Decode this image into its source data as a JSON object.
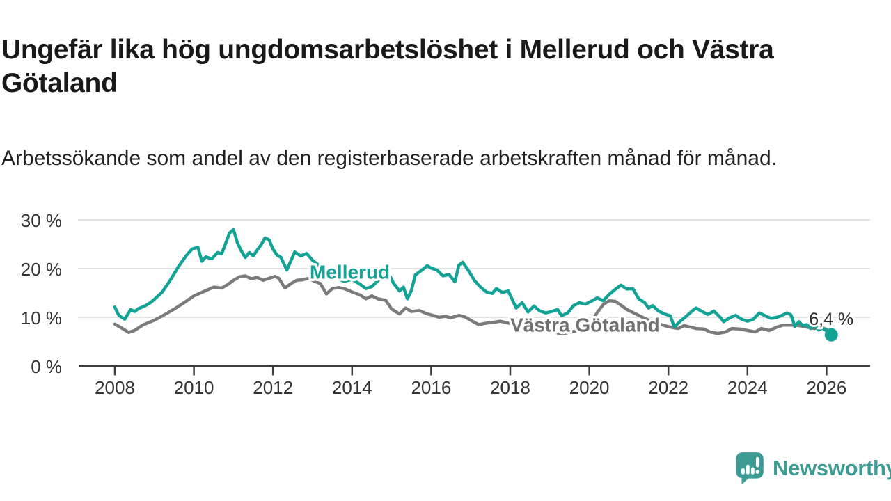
{
  "title": "Ungefär lika hög ungdomsarbetslöshet i Mellerud och Västra Götaland",
  "subtitle": "Arbetssökande som andel av den registerbaserade arbetskraften månad för månad.",
  "branding": {
    "logo_text": "Newsworthy",
    "logo_color": "#3d9b93"
  },
  "colors": {
    "mellerud_line": "#12a296",
    "vastra_gotaland_line": "#7b7b7b",
    "grid": "#d9d9d9",
    "axis": "#3c3c3c",
    "tick_text": "#333333",
    "title_text": "#191919",
    "annotation_text": "#2b2b2b"
  },
  "chart_data": {
    "type": "line",
    "title": "Ungefär lika hög ungdomsarbetslöshet i Mellerud och Västra Götaland",
    "subtitle": "Arbetssökande som andel av den registerbaserade arbetskraften månad för månad.",
    "x_axis": {
      "ticks": [
        2008,
        2010,
        2012,
        2014,
        2016,
        2018,
        2020,
        2022,
        2024,
        2026
      ]
    },
    "y_axis": {
      "ticks": [
        {
          "value": 0,
          "label": "0 %"
        },
        {
          "value": 10,
          "label": "10 %"
        },
        {
          "value": 20,
          "label": "20 %"
        },
        {
          "value": 30,
          "label": "30 %"
        }
      ],
      "range": [
        0,
        32
      ],
      "grid": true
    },
    "legend_position": "inline-labels",
    "annotation": {
      "label": "6,4 %",
      "x": 2026.12,
      "y": 6.4
    },
    "series_labels": [
      {
        "text": "Mellerud",
        "x": 2012.93,
        "y": 17.9,
        "color": "#12a296"
      },
      {
        "text": "Västra Götaland",
        "x": 2018.0,
        "y": 7.1,
        "color": "#717171"
      }
    ],
    "series": [
      {
        "name": "Västra Götaland",
        "color": "#7b7b7b",
        "points": [
          [
            2008.0,
            8.6
          ],
          [
            2008.15,
            7.9
          ],
          [
            2008.35,
            6.9
          ],
          [
            2008.5,
            7.3
          ],
          [
            2008.7,
            8.4
          ],
          [
            2008.85,
            8.9
          ],
          [
            2009.0,
            9.4
          ],
          [
            2009.25,
            10.5
          ],
          [
            2009.5,
            11.7
          ],
          [
            2009.75,
            13.0
          ],
          [
            2010.0,
            14.4
          ],
          [
            2010.25,
            15.3
          ],
          [
            2010.5,
            16.2
          ],
          [
            2010.7,
            16.0
          ],
          [
            2010.85,
            16.7
          ],
          [
            2011.0,
            17.6
          ],
          [
            2011.15,
            18.3
          ],
          [
            2011.3,
            18.5
          ],
          [
            2011.45,
            17.9
          ],
          [
            2011.6,
            18.2
          ],
          [
            2011.75,
            17.6
          ],
          [
            2011.9,
            18.0
          ],
          [
            2012.05,
            18.4
          ],
          [
            2012.15,
            18.0
          ],
          [
            2012.3,
            16.0
          ],
          [
            2012.45,
            16.9
          ],
          [
            2012.6,
            17.6
          ],
          [
            2012.75,
            17.7
          ],
          [
            2012.9,
            18.0
          ],
          [
            2013.05,
            17.4
          ],
          [
            2013.2,
            16.9
          ],
          [
            2013.35,
            14.8
          ],
          [
            2013.5,
            15.9
          ],
          [
            2013.65,
            16.1
          ],
          [
            2013.8,
            15.9
          ],
          [
            2014.0,
            15.2
          ],
          [
            2014.2,
            14.6
          ],
          [
            2014.35,
            13.8
          ],
          [
            2014.5,
            14.4
          ],
          [
            2014.65,
            13.8
          ],
          [
            2014.85,
            13.5
          ],
          [
            2015.0,
            11.7
          ],
          [
            2015.2,
            10.7
          ],
          [
            2015.35,
            11.9
          ],
          [
            2015.5,
            11.2
          ],
          [
            2015.7,
            11.4
          ],
          [
            2015.9,
            10.7
          ],
          [
            2016.05,
            10.4
          ],
          [
            2016.2,
            10.0
          ],
          [
            2016.35,
            10.2
          ],
          [
            2016.5,
            9.9
          ],
          [
            2016.7,
            10.4
          ],
          [
            2016.85,
            10.1
          ],
          [
            2017.0,
            9.4
          ],
          [
            2017.2,
            8.5
          ],
          [
            2017.4,
            8.8
          ],
          [
            2017.6,
            9.0
          ],
          [
            2017.75,
            9.2
          ],
          [
            2017.9,
            8.9
          ],
          [
            2018.1,
            8.6
          ],
          [
            2018.3,
            8.0
          ],
          [
            2018.5,
            7.8
          ],
          [
            2018.7,
            7.6
          ],
          [
            2018.9,
            7.4
          ],
          [
            2019.1,
            7.0
          ],
          [
            2019.3,
            6.6
          ],
          [
            2019.5,
            6.9
          ],
          [
            2019.7,
            7.3
          ],
          [
            2019.9,
            8.0
          ],
          [
            2020.05,
            9.0
          ],
          [
            2020.2,
            11.0
          ],
          [
            2020.35,
            12.6
          ],
          [
            2020.5,
            13.4
          ],
          [
            2020.65,
            13.3
          ],
          [
            2020.8,
            12.5
          ],
          [
            2020.95,
            11.6
          ],
          [
            2021.1,
            11.0
          ],
          [
            2021.3,
            10.2
          ],
          [
            2021.5,
            9.4
          ],
          [
            2021.7,
            8.8
          ],
          [
            2021.9,
            8.3
          ],
          [
            2022.1,
            7.9
          ],
          [
            2022.25,
            7.7
          ],
          [
            2022.4,
            8.3
          ],
          [
            2022.55,
            8.0
          ],
          [
            2022.7,
            7.7
          ],
          [
            2022.9,
            7.6
          ],
          [
            2023.05,
            7.0
          ],
          [
            2023.25,
            6.7
          ],
          [
            2023.45,
            7.0
          ],
          [
            2023.6,
            7.7
          ],
          [
            2023.8,
            7.6
          ],
          [
            2024.0,
            7.3
          ],
          [
            2024.2,
            7.0
          ],
          [
            2024.35,
            7.7
          ],
          [
            2024.55,
            7.3
          ],
          [
            2024.75,
            8.0
          ],
          [
            2024.9,
            8.4
          ],
          [
            2025.1,
            8.4
          ],
          [
            2025.3,
            8.3
          ],
          [
            2025.5,
            8.0
          ],
          [
            2025.7,
            7.7
          ],
          [
            2025.85,
            8.0
          ],
          [
            2026.0,
            7.5
          ]
        ]
      },
      {
        "name": "Mellerud",
        "color": "#12a296",
        "end_dot": true,
        "points": [
          [
            2008.0,
            12.1
          ],
          [
            2008.1,
            10.4
          ],
          [
            2008.25,
            9.6
          ],
          [
            2008.4,
            11.6
          ],
          [
            2008.5,
            11.2
          ],
          [
            2008.6,
            11.8
          ],
          [
            2008.75,
            12.3
          ],
          [
            2008.9,
            13.0
          ],
          [
            2009.0,
            13.7
          ],
          [
            2009.2,
            15.2
          ],
          [
            2009.4,
            17.6
          ],
          [
            2009.6,
            20.3
          ],
          [
            2009.8,
            22.6
          ],
          [
            2009.95,
            24.0
          ],
          [
            2010.1,
            24.4
          ],
          [
            2010.2,
            21.5
          ],
          [
            2010.3,
            22.4
          ],
          [
            2010.45,
            22.0
          ],
          [
            2010.6,
            23.3
          ],
          [
            2010.7,
            23.0
          ],
          [
            2010.8,
            25.1
          ],
          [
            2010.9,
            27.3
          ],
          [
            2011.0,
            28.0
          ],
          [
            2011.1,
            25.3
          ],
          [
            2011.2,
            23.6
          ],
          [
            2011.3,
            22.3
          ],
          [
            2011.4,
            23.3
          ],
          [
            2011.5,
            22.6
          ],
          [
            2011.6,
            23.8
          ],
          [
            2011.7,
            24.9
          ],
          [
            2011.8,
            26.3
          ],
          [
            2011.9,
            25.9
          ],
          [
            2012.0,
            24.0
          ],
          [
            2012.1,
            22.8
          ],
          [
            2012.2,
            22.3
          ],
          [
            2012.35,
            19.7
          ],
          [
            2012.55,
            23.4
          ],
          [
            2012.7,
            22.6
          ],
          [
            2012.85,
            23.1
          ],
          [
            2013.0,
            21.7
          ],
          [
            2013.2,
            20.4
          ],
          [
            2013.4,
            19.0
          ],
          [
            2013.6,
            18.0
          ],
          [
            2013.8,
            17.4
          ],
          [
            2014.0,
            17.8
          ],
          [
            2014.2,
            16.8
          ],
          [
            2014.35,
            15.9
          ],
          [
            2014.5,
            16.3
          ],
          [
            2014.7,
            17.9
          ],
          [
            2014.9,
            19.4
          ],
          [
            2015.05,
            17.0
          ],
          [
            2015.2,
            15.4
          ],
          [
            2015.3,
            16.2
          ],
          [
            2015.4,
            13.8
          ],
          [
            2015.5,
            15.5
          ],
          [
            2015.6,
            18.7
          ],
          [
            2015.8,
            19.9
          ],
          [
            2015.9,
            20.6
          ],
          [
            2016.0,
            20.1
          ],
          [
            2016.15,
            19.7
          ],
          [
            2016.3,
            18.5
          ],
          [
            2016.45,
            18.8
          ],
          [
            2016.6,
            17.3
          ],
          [
            2016.7,
            20.7
          ],
          [
            2016.8,
            21.3
          ],
          [
            2016.95,
            19.5
          ],
          [
            2017.1,
            17.5
          ],
          [
            2017.25,
            16.2
          ],
          [
            2017.4,
            15.2
          ],
          [
            2017.55,
            14.9
          ],
          [
            2017.65,
            15.9
          ],
          [
            2017.8,
            15.1
          ],
          [
            2017.95,
            15.4
          ],
          [
            2018.05,
            13.7
          ],
          [
            2018.15,
            11.9
          ],
          [
            2018.3,
            13.0
          ],
          [
            2018.45,
            11.1
          ],
          [
            2018.6,
            12.3
          ],
          [
            2018.75,
            11.3
          ],
          [
            2018.9,
            10.9
          ],
          [
            2019.05,
            11.2
          ],
          [
            2019.2,
            11.6
          ],
          [
            2019.3,
            10.3
          ],
          [
            2019.45,
            10.9
          ],
          [
            2019.6,
            12.4
          ],
          [
            2019.75,
            13.0
          ],
          [
            2019.9,
            12.7
          ],
          [
            2020.05,
            13.3
          ],
          [
            2020.2,
            14.0
          ],
          [
            2020.35,
            13.4
          ],
          [
            2020.5,
            14.7
          ],
          [
            2020.65,
            15.7
          ],
          [
            2020.8,
            16.6
          ],
          [
            2020.95,
            15.8
          ],
          [
            2021.1,
            15.9
          ],
          [
            2021.25,
            13.8
          ],
          [
            2021.4,
            13.0
          ],
          [
            2021.5,
            11.9
          ],
          [
            2021.6,
            12.4
          ],
          [
            2021.75,
            11.3
          ],
          [
            2021.9,
            10.7
          ],
          [
            2022.05,
            10.3
          ],
          [
            2022.15,
            8.0
          ],
          [
            2022.3,
            9.2
          ],
          [
            2022.45,
            10.2
          ],
          [
            2022.6,
            11.3
          ],
          [
            2022.7,
            11.9
          ],
          [
            2022.85,
            11.2
          ],
          [
            2023.0,
            10.6
          ],
          [
            2023.15,
            11.3
          ],
          [
            2023.3,
            10.1
          ],
          [
            2023.4,
            9.1
          ],
          [
            2023.55,
            9.9
          ],
          [
            2023.7,
            10.4
          ],
          [
            2023.85,
            9.6
          ],
          [
            2024.0,
            9.2
          ],
          [
            2024.15,
            9.6
          ],
          [
            2024.3,
            10.9
          ],
          [
            2024.45,
            10.3
          ],
          [
            2024.6,
            9.8
          ],
          [
            2024.75,
            10.0
          ],
          [
            2024.9,
            10.5
          ],
          [
            2025.0,
            10.9
          ],
          [
            2025.1,
            10.5
          ],
          [
            2025.2,
            8.1
          ],
          [
            2025.3,
            9.1
          ],
          [
            2025.4,
            8.3
          ],
          [
            2025.5,
            8.5
          ],
          [
            2025.6,
            7.7
          ],
          [
            2025.7,
            8.3
          ],
          [
            2025.8,
            7.4
          ],
          [
            2025.9,
            7.8
          ],
          [
            2026.0,
            7.2
          ],
          [
            2026.12,
            6.4
          ]
        ]
      }
    ]
  }
}
